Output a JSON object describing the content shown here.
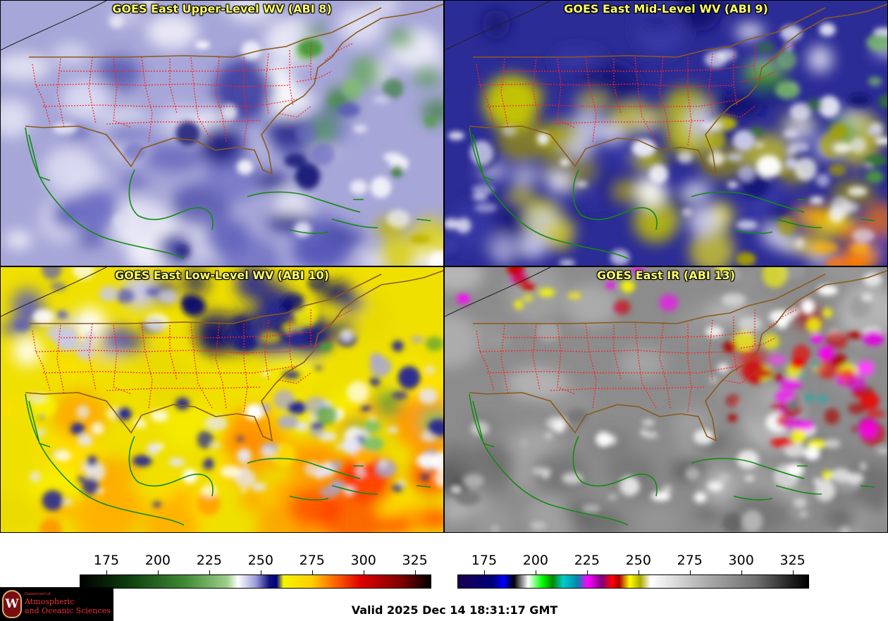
{
  "panels": [
    {
      "id": "p8",
      "title": "GOES East Upper-Level WV (ABI 8)",
      "scheme": "wv",
      "level": 0
    },
    {
      "id": "p9",
      "title": "GOES East Mid-Level WV (ABI 9)",
      "scheme": "wv",
      "level": 1
    },
    {
      "id": "p10",
      "title": "GOES East Low-Level WV (ABI 10)",
      "scheme": "wv",
      "level": 2
    },
    {
      "id": "p13",
      "title": "GOES East IR (ABI 13)",
      "scheme": "ir",
      "level": 0
    }
  ],
  "colorbars": {
    "wv": {
      "tick_labels": [
        "175",
        "200",
        "225",
        "250",
        "275",
        "300",
        "325"
      ],
      "tick_values": [
        175,
        200,
        225,
        250,
        275,
        300,
        325
      ],
      "range": [
        162,
        333
      ],
      "stops": [
        [
          "#000000",
          0
        ],
        [
          "#0c3a0c",
          0.13
        ],
        [
          "#3f8a35",
          0.3
        ],
        [
          "#9fd08a",
          0.42
        ],
        [
          "#ffffff",
          0.45
        ],
        [
          "#9e9edb",
          0.5
        ],
        [
          "#10107a",
          0.54
        ],
        [
          "#000080",
          0.56
        ],
        [
          "#f4f400",
          0.58
        ],
        [
          "#ffd000",
          0.66
        ],
        [
          "#ff7000",
          0.72
        ],
        [
          "#e00000",
          0.8
        ],
        [
          "#7a0000",
          0.92
        ],
        [
          "#000000",
          1.0
        ]
      ]
    },
    "ir": {
      "tick_labels": [
        "175",
        "200",
        "225",
        "250",
        "275",
        "300",
        "325"
      ],
      "tick_values": [
        175,
        200,
        225,
        250,
        275,
        300,
        325
      ],
      "range": [
        162,
        333
      ],
      "stops": [
        [
          "#1a0050",
          0
        ],
        [
          "#00007a",
          0.1
        ],
        [
          "#0000ff",
          0.13
        ],
        [
          "#000000",
          0.16
        ],
        [
          "#ffffff",
          0.2
        ],
        [
          "#00ff00",
          0.24
        ],
        [
          "#008800",
          0.27
        ],
        [
          "#00cccc",
          0.3
        ],
        [
          "#0088aa",
          0.34
        ],
        [
          "#ff00ff",
          0.37
        ],
        [
          "#800080",
          0.41
        ],
        [
          "#ff0000",
          0.44
        ],
        [
          "#aa0000",
          0.46
        ],
        [
          "#ffff00",
          0.49
        ],
        [
          "#aaaa00",
          0.52
        ],
        [
          "#ffffff",
          0.55
        ],
        [
          "#b0b0b0",
          0.7
        ],
        [
          "#707070",
          0.85
        ],
        [
          "#202020",
          0.95
        ],
        [
          "#000000",
          1.0
        ]
      ]
    }
  },
  "valid_time": "Valid 2025 Dec 14 18:31:17 GMT",
  "logo": {
    "dept": "Department of",
    "line1": "Atmospheric",
    "line2": "and Oceanic Sciences",
    "seal_letter": "W"
  },
  "colors": {
    "title": "#ffff66",
    "state_lines": "#ff2020",
    "coast_land": "#8b5a1a",
    "coast_mexico": "#138a13"
  }
}
